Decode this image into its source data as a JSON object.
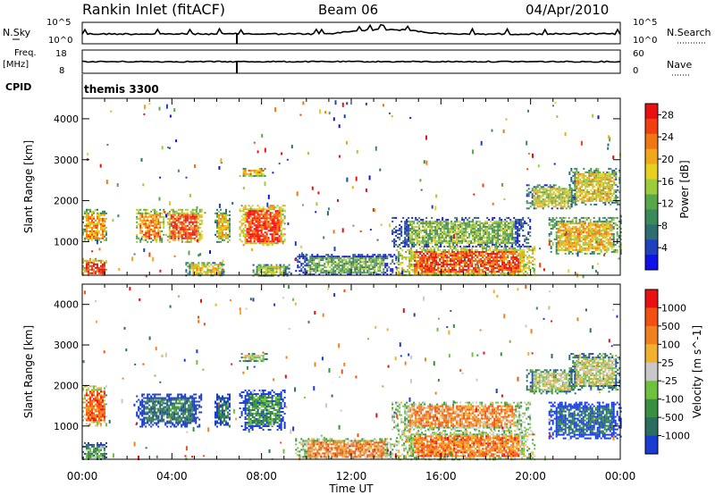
{
  "header": {
    "station": "Rankin Inlet (fitACF)",
    "beam": "Beam 06",
    "date": "04/Apr/2010"
  },
  "strips": {
    "nsky_label": "N.Sky",
    "nsky_ticks": [
      "10^5",
      "10^0"
    ],
    "nsearch_label": "N.Search",
    "nsearch_ticks": [
      "10^5",
      "10^0"
    ],
    "freq_label": "Freq.",
    "freq_unit": "[MHz]",
    "freq_ticks": [
      "18",
      "8"
    ],
    "nave_label": "Nave",
    "nave_ticks": [
      "60",
      "0"
    ],
    "cpid_label": "CPID",
    "cpid_value": "themis 3300"
  },
  "chart_data": [
    {
      "type": "heatmap",
      "parameter": "Power",
      "ylabel": "Slant Range [km]",
      "xlabel": "Time UT",
      "x_ticks": [
        "00:00",
        "04:00",
        "08:00",
        "12:00",
        "16:00",
        "20:00",
        "00:00"
      ],
      "xlim_hours": [
        0,
        24
      ],
      "y_ticks": [
        "1000",
        "2000",
        "3000",
        "4000"
      ],
      "ylim": [
        180,
        4500
      ],
      "colorbar": {
        "label": "Power [dB]",
        "ticks": [
          "4",
          "8",
          "12",
          "16",
          "20",
          "24",
          "28"
        ],
        "range": [
          0,
          30
        ],
        "colors": [
          "#1010e8",
          "#2040c0",
          "#2e6e70",
          "#3a8a5a",
          "#58a848",
          "#9ccc3c",
          "#e8d020",
          "#f0a818",
          "#f07814",
          "#f04010",
          "#e81010"
        ]
      },
      "regions": [
        {
          "t0": 0.0,
          "t1": 1.1,
          "r0": 180,
          "r1": 600,
          "level": 0.9
        },
        {
          "t0": 0.0,
          "t1": 1.1,
          "r0": 1000,
          "r1": 1800,
          "level": 0.7
        },
        {
          "t0": 2.4,
          "t1": 3.6,
          "r0": 1000,
          "r1": 1800,
          "level": 0.75
        },
        {
          "t0": 3.7,
          "t1": 5.3,
          "r0": 1000,
          "r1": 1800,
          "level": 0.85
        },
        {
          "t0": 5.9,
          "t1": 6.6,
          "r0": 1000,
          "r1": 1800,
          "level": 0.65
        },
        {
          "t0": 7.0,
          "t1": 9.0,
          "r0": 900,
          "r1": 1900,
          "level": 0.9
        },
        {
          "t0": 7.0,
          "t1": 8.2,
          "r0": 2600,
          "r1": 2800,
          "level": 0.7
        },
        {
          "t0": 4.6,
          "t1": 6.4,
          "r0": 180,
          "r1": 500,
          "level": 0.6
        },
        {
          "t0": 7.6,
          "t1": 9.2,
          "r0": 180,
          "r1": 450,
          "level": 0.55
        },
        {
          "t0": 14.0,
          "t1": 20.2,
          "r0": 180,
          "r1": 900,
          "level": 0.85
        },
        {
          "t0": 13.8,
          "t1": 20.0,
          "r0": 900,
          "r1": 1600,
          "level": 0.45
        },
        {
          "t0": 19.8,
          "t1": 22.0,
          "r0": 1800,
          "r1": 2400,
          "level": 0.55
        },
        {
          "t0": 21.7,
          "t1": 24.0,
          "r0": 1900,
          "r1": 2800,
          "level": 0.6
        },
        {
          "t0": 20.8,
          "t1": 24.0,
          "r0": 700,
          "r1": 1600,
          "level": 0.65
        },
        {
          "t0": 9.5,
          "t1": 14.0,
          "r0": 180,
          "r1": 700,
          "level": 0.4
        }
      ]
    },
    {
      "type": "heatmap",
      "parameter": "Velocity",
      "ylabel": "Slant Range [km]",
      "xlabel": "Time UT",
      "x_ticks": [
        "00:00",
        "04:00",
        "08:00",
        "12:00",
        "16:00",
        "20:00",
        "00:00"
      ],
      "xlim_hours": [
        0,
        24
      ],
      "y_ticks": [
        "1000",
        "2000",
        "3000",
        "4000"
      ],
      "ylim": [
        180,
        4500
      ],
      "colorbar": {
        "label": "Velocity [m s^-1]",
        "ticks": [
          "1000",
          "500",
          "100",
          "25",
          "-25",
          "-100",
          "-500",
          "-1000"
        ],
        "colors": [
          "#1a3cd0",
          "#2a6e60",
          "#3a9040",
          "#70c040",
          "#c8c8c8",
          "#f0b030",
          "#f08020",
          "#f05010",
          "#e81010"
        ]
      },
      "regions": [
        {
          "t0": 0.0,
          "t1": 1.1,
          "r0": 180,
          "r1": 600,
          "level": 0.35
        },
        {
          "t0": 0.0,
          "t1": 1.1,
          "r0": 1000,
          "r1": 2000,
          "level": 0.8
        },
        {
          "t0": 2.4,
          "t1": 5.3,
          "r0": 1000,
          "r1": 1800,
          "level": 0.2
        },
        {
          "t0": 5.9,
          "t1": 6.6,
          "r0": 1000,
          "r1": 1800,
          "level": 0.2
        },
        {
          "t0": 7.0,
          "t1": 9.0,
          "r0": 900,
          "r1": 1900,
          "level": 0.25
        },
        {
          "t0": 7.0,
          "t1": 8.2,
          "r0": 2600,
          "r1": 2800,
          "level": 0.5
        },
        {
          "t0": 14.0,
          "t1": 20.2,
          "r0": 180,
          "r1": 900,
          "level": 0.75
        },
        {
          "t0": 13.8,
          "t1": 20.0,
          "r0": 900,
          "r1": 1600,
          "level": 0.7
        },
        {
          "t0": 19.8,
          "t1": 22.0,
          "r0": 1800,
          "r1": 2400,
          "level": 0.5
        },
        {
          "t0": 21.7,
          "t1": 24.0,
          "r0": 1900,
          "r1": 2800,
          "level": 0.5
        },
        {
          "t0": 20.8,
          "t1": 24.0,
          "r0": 700,
          "r1": 1600,
          "level": 0.15
        },
        {
          "t0": 9.5,
          "t1": 14.0,
          "r0": 180,
          "r1": 700,
          "level": 0.72
        }
      ]
    }
  ]
}
